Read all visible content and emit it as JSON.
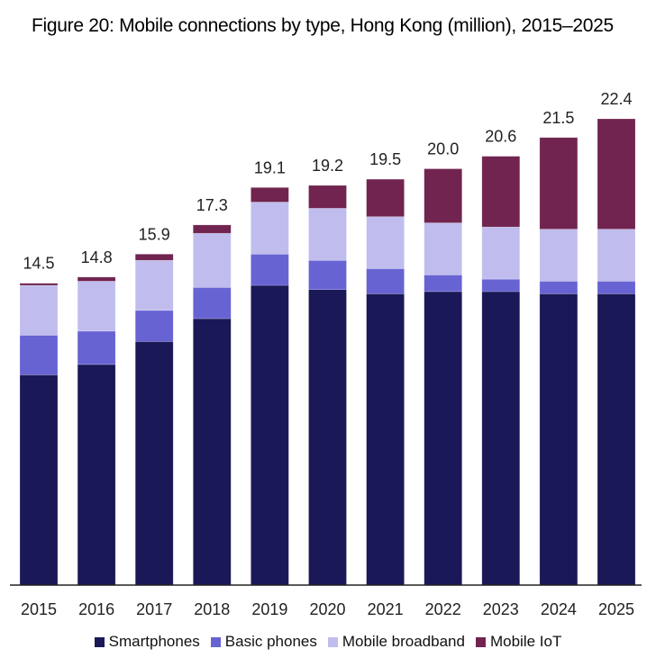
{
  "chart_data": {
    "type": "bar",
    "stacked": true,
    "title": "Figure 20: Mobile connections by type, Hong Kong (million), 2015–2025",
    "xlabel": "",
    "ylabel": "",
    "ylim": [
      0,
      22.4
    ],
    "grid": false,
    "legend_position": "bottom",
    "categories": [
      "2015",
      "2016",
      "2017",
      "2018",
      "2019",
      "2020",
      "2021",
      "2022",
      "2023",
      "2024",
      "2025"
    ],
    "series": [
      {
        "name": "Smartphones",
        "color": "#1b1858",
        "values": [
          10.1,
          10.6,
          11.7,
          12.8,
          14.4,
          14.2,
          14.0,
          14.1,
          14.1,
          14.0,
          14.0
        ]
      },
      {
        "name": "Basic phones",
        "color": "#6763d3",
        "values": [
          1.9,
          1.6,
          1.5,
          1.5,
          1.5,
          1.4,
          1.2,
          0.8,
          0.6,
          0.6,
          0.6
        ]
      },
      {
        "name": "Mobile broadband",
        "color": "#c0bdee",
        "values": [
          2.4,
          2.4,
          2.4,
          2.6,
          2.5,
          2.5,
          2.5,
          2.5,
          2.5,
          2.5,
          2.5
        ]
      },
      {
        "name": "Mobile IoT",
        "color": "#70244f",
        "values": [
          0.1,
          0.2,
          0.3,
          0.4,
          0.7,
          1.1,
          1.8,
          2.6,
          3.4,
          4.4,
          5.3
        ]
      }
    ],
    "totals": [
      "14.5",
      "14.8",
      "15.9",
      "17.3",
      "19.1",
      "19.2",
      "19.5",
      "20.0",
      "20.6",
      "21.5",
      "22.4"
    ]
  }
}
